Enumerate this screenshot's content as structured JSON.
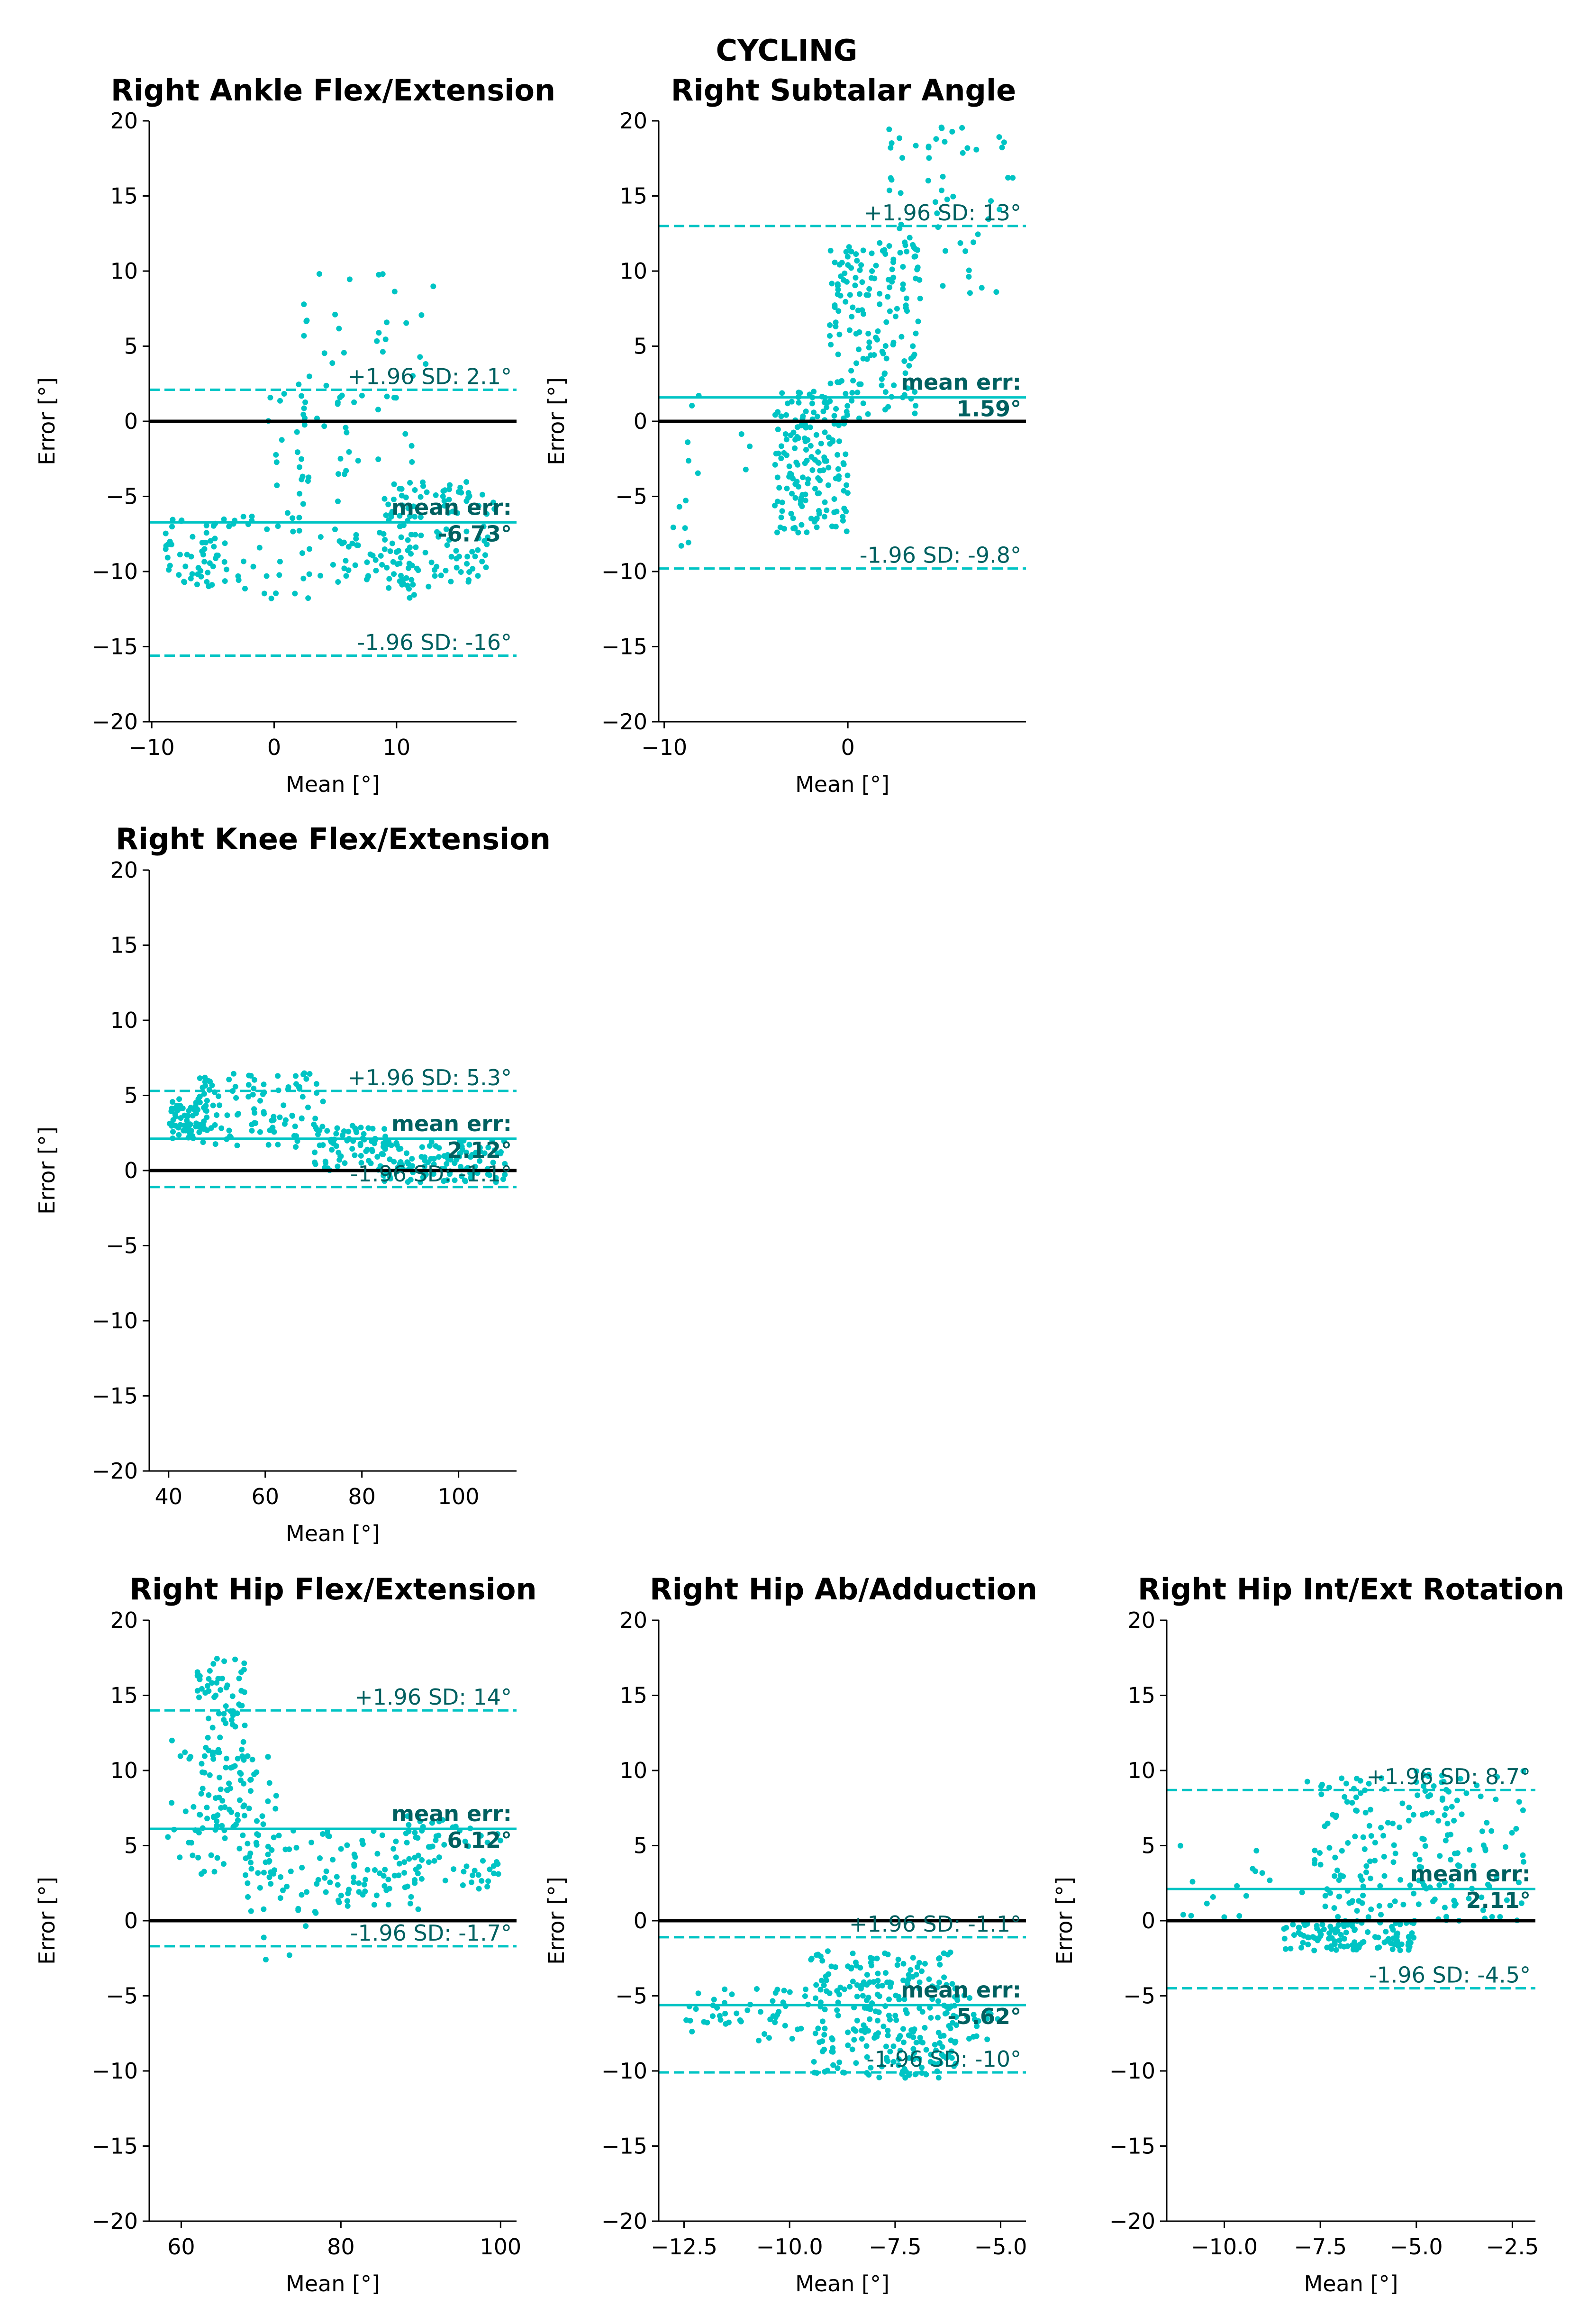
{
  "figure_title": "CYCLING",
  "colors": {
    "points": "#00c4c4",
    "lines": "#00c4c4",
    "zero_line": "#000000",
    "annotation": "#006060"
  },
  "chart_data": [
    {
      "type": "scatter",
      "title": "Right Ankle Flex/Extension",
      "xlabel": "Mean [°]",
      "ylabel": "Error [°]",
      "xlim": [
        -10.2,
        19.8
      ],
      "ylim": [
        -20,
        20
      ],
      "xticks": [
        -10,
        0,
        10
      ],
      "xtick_labels": [
        "−10",
        "0",
        "10"
      ],
      "yticks": [
        -20,
        -15,
        -10,
        -5,
        0,
        5,
        10,
        15,
        20
      ],
      "ytick_labels": [
        "−20",
        "−15",
        "−10",
        "−5",
        "0",
        "5",
        "10",
        "15",
        "20"
      ],
      "mean_err": -6.73,
      "upper_loa": 2.1,
      "lower_loa": -15.6,
      "mean_label": "mean err:",
      "mean_value_label": "-6.73°",
      "upper_label": "+1.96 SD: 2.1°",
      "lower_label": "-1.96 SD: -16°",
      "clusters": [
        {
          "x": [
            -9,
            -4
          ],
          "y": [
            -11,
            -6.5
          ],
          "n": 50
        },
        {
          "x": [
            -5,
            12
          ],
          "y": [
            -11.8,
            -6
          ],
          "n": 90
        },
        {
          "x": [
            2,
            9
          ],
          "y": [
            -4,
            10
          ],
          "n": 35
        },
        {
          "x": [
            -1,
            6
          ],
          "y": [
            -6,
            2
          ],
          "n": 25
        },
        {
          "x": [
            8,
            13
          ],
          "y": [
            -9,
            9
          ],
          "n": 20
        },
        {
          "x": [
            9,
            18
          ],
          "y": [
            -11,
            -4
          ],
          "n": 110
        }
      ]
    },
    {
      "type": "scatter",
      "title": "Right Subtalar Angle",
      "xlabel": "Mean [°]",
      "ylabel": "Error [°]",
      "xlim": [
        -10.3,
        9.7
      ],
      "ylim": [
        -20,
        20
      ],
      "xticks": [
        -10,
        0
      ],
      "xtick_labels": [
        "−10",
        "0"
      ],
      "yticks": [
        -20,
        -15,
        -10,
        -5,
        0,
        5,
        10,
        15,
        20
      ],
      "ytick_labels": [
        "−20",
        "−15",
        "−10",
        "−5",
        "0",
        "5",
        "10",
        "15",
        "20"
      ],
      "mean_err": 1.59,
      "upper_loa": 13.0,
      "lower_loa": -9.8,
      "mean_label": "mean err:",
      "mean_value_label": "1.59°",
      "upper_label": "+1.96 SD: 13°",
      "lower_label": "-1.96 SD: -9.8°",
      "clusters": [
        {
          "x": [
            -4,
            0
          ],
          "y": [
            -7.5,
            2
          ],
          "n": 170
        },
        {
          "x": [
            -1,
            4
          ],
          "y": [
            0,
            12
          ],
          "n": 150
        },
        {
          "x": [
            2,
            9
          ],
          "y": [
            8,
            20
          ],
          "n": 60
        },
        {
          "x": [
            -10,
            -4
          ],
          "y": [
            -10.5,
            2
          ],
          "n": 14
        }
      ]
    },
    {
      "type": "scatter",
      "title": "Right Knee Flex/Extension",
      "xlabel": "Mean [°]",
      "ylabel": "Error [°]",
      "xlim": [
        36,
        112
      ],
      "ylim": [
        -20,
        20
      ],
      "xticks": [
        40,
        60,
        80,
        100
      ],
      "xtick_labels": [
        "40",
        "60",
        "80",
        "100"
      ],
      "yticks": [
        -20,
        -15,
        -10,
        -5,
        0,
        5,
        10,
        15,
        20
      ],
      "ytick_labels": [
        "−20",
        "−15",
        "−10",
        "−5",
        "0",
        "5",
        "10",
        "15",
        "20"
      ],
      "mean_err": 2.12,
      "upper_loa": 5.3,
      "lower_loa": -1.1,
      "mean_label": "mean err:",
      "mean_value_label": "2.12°",
      "upper_label": "+1.96 SD: 5.3°",
      "lower_label": "-1.96 SD: -1.1°",
      "clusters": [
        {
          "x": [
            40,
            48
          ],
          "y": [
            2,
            5
          ],
          "n": 70
        },
        {
          "x": [
            46,
            72
          ],
          "y": [
            1.5,
            6.5
          ],
          "n": 100
        },
        {
          "x": [
            70,
            85
          ],
          "y": [
            0,
            3
          ],
          "n": 70
        },
        {
          "x": [
            84,
            110
          ],
          "y": [
            -0.8,
            2
          ],
          "n": 120
        }
      ]
    },
    {
      "type": "scatter",
      "title": "Right Hip Flex/Extension",
      "xlabel": "Mean [°]",
      "ylabel": "Error [°]",
      "xlim": [
        56,
        102
      ],
      "ylim": [
        -20,
        20
      ],
      "xticks": [
        60,
        80,
        100
      ],
      "xtick_labels": [
        "60",
        "80",
        "100"
      ],
      "yticks": [
        -20,
        -15,
        -10,
        -5,
        0,
        5,
        10,
        15,
        20
      ],
      "ytick_labels": [
        "−20",
        "−15",
        "−10",
        "−5",
        "0",
        "5",
        "10",
        "15",
        "20"
      ],
      "mean_err": 6.12,
      "upper_loa": 14.0,
      "lower_loa": -1.7,
      "mean_label": "mean err:",
      "mean_value_label": "6.12°",
      "upper_label": "+1.96 SD: 14°",
      "lower_label": "-1.96 SD: -1.7°",
      "clusters": [
        {
          "x": [
            62,
            68
          ],
          "y": [
            6,
            17.5
          ],
          "n": 100
        },
        {
          "x": [
            58,
            72
          ],
          "y": [
            3,
            12
          ],
          "n": 70
        },
        {
          "x": [
            68,
            90
          ],
          "y": [
            0.5,
            6
          ],
          "n": 110
        },
        {
          "x": [
            88,
            100
          ],
          "y": [
            2,
            7
          ],
          "n": 60
        },
        {
          "x": [
            70,
            80
          ],
          "y": [
            -3,
            0
          ],
          "n": 4
        }
      ]
    },
    {
      "type": "scatter",
      "title": "Right Hip Ab/Adduction",
      "xlabel": "Mean [°]",
      "ylabel": "Error [°]",
      "xlim": [
        -13.1,
        -4.4
      ],
      "ylim": [
        -20,
        20
      ],
      "xticks": [
        -12.5,
        -10.0,
        -7.5,
        -5.0
      ],
      "xtick_labels": [
        "−12.5",
        "−10.0",
        "−7.5",
        "−5.0"
      ],
      "yticks": [
        -20,
        -15,
        -10,
        -5,
        0,
        5,
        10,
        15,
        20
      ],
      "ytick_labels": [
        "−20",
        "−15",
        "−10",
        "−5",
        "0",
        "5",
        "10",
        "15",
        "20"
      ],
      "mean_err": -5.62,
      "upper_loa": -1.1,
      "lower_loa": -10.1,
      "mean_label": "mean err:",
      "mean_value_label": "-5.62°",
      "upper_label": "+1.96 SD: -1.1°",
      "lower_label": "-1.96 SD: -10°",
      "clusters": [
        {
          "x": [
            -12.5,
            -9.5
          ],
          "y": [
            -8,
            -4.5
          ],
          "n": 50
        },
        {
          "x": [
            -9.5,
            -6
          ],
          "y": [
            -10.5,
            -2
          ],
          "n": 260
        },
        {
          "x": [
            -6.5,
            -5
          ],
          "y": [
            -8,
            -4
          ],
          "n": 20
        }
      ]
    },
    {
      "type": "scatter",
      "title": "Right Hip Int/Ext Rotation",
      "xlabel": "Mean [°]",
      "ylabel": "Error [°]",
      "xlim": [
        -11.5,
        -1.9
      ],
      "ylim": [
        -20,
        20
      ],
      "xticks": [
        -10.0,
        -7.5,
        -5.0,
        -2.5
      ],
      "xtick_labels": [
        "−10.0",
        "−7.5",
        "−5.0",
        "−2.5"
      ],
      "yticks": [
        -20,
        -15,
        -10,
        -5,
        0,
        5,
        10,
        15,
        20
      ],
      "ytick_labels": [
        "−20",
        "−15",
        "−10",
        "−5",
        "0",
        "5",
        "10",
        "15",
        "20"
      ],
      "mean_err": 2.11,
      "upper_loa": 8.7,
      "lower_loa": -4.5,
      "mean_label": "mean err:",
      "mean_value_label": "2.11°",
      "upper_label": "+1.96 SD: 8.7°",
      "lower_label": "-1.96 SD: -4.5°",
      "clusters": [
        {
          "x": [
            -8.5,
            -5
          ],
          "y": [
            -2,
            0
          ],
          "n": 120
        },
        {
          "x": [
            -8,
            -4
          ],
          "y": [
            0,
            9.5
          ],
          "n": 130
        },
        {
          "x": [
            -5,
            -2.2
          ],
          "y": [
            0,
            10
          ],
          "n": 70
        },
        {
          "x": [
            -11.2,
            -8.5
          ],
          "y": [
            0,
            5
          ],
          "n": 15
        }
      ]
    }
  ]
}
